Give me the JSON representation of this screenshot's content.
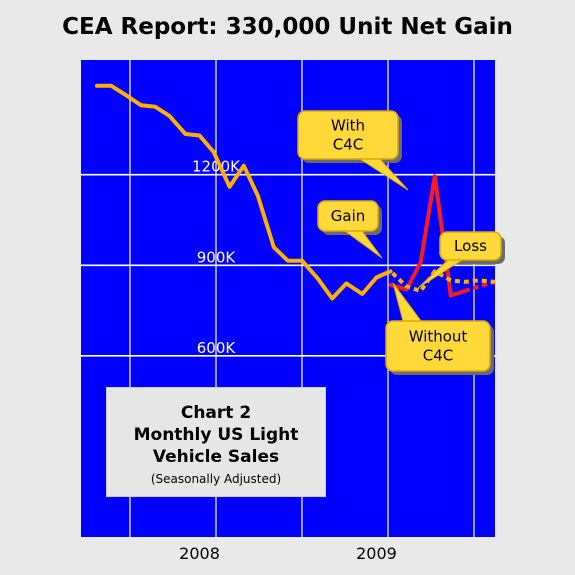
{
  "title": "CEA Report: 330,000 Unit Net Gain",
  "chart_data": {
    "type": "line",
    "title": "CEA Report: 330,000 Unit Net Gain",
    "y_ticks": [
      {
        "value": 600,
        "label": "600K"
      },
      {
        "value": 900,
        "label": "900K"
      },
      {
        "value": 1200,
        "label": "1200K"
      }
    ],
    "x_ticks": [
      {
        "value": 2008,
        "label": "2008"
      },
      {
        "value": 2009,
        "label": "2009"
      }
    ],
    "xlim": [
      2007.33,
      2009.67
    ],
    "ylim": [
      0,
      1580
    ],
    "grid": true,
    "series": [
      {
        "id": "actual",
        "color": "#ffb000",
        "style": "solid",
        "points": [
          [
            2007.42,
            1495
          ],
          [
            2007.5,
            1495
          ],
          [
            2007.58,
            1465
          ],
          [
            2007.67,
            1430
          ],
          [
            2007.75,
            1425
          ],
          [
            2007.83,
            1395
          ],
          [
            2007.92,
            1335
          ],
          [
            2008.0,
            1330
          ],
          [
            2008.08,
            1275
          ],
          [
            2008.17,
            1160
          ],
          [
            2008.25,
            1230
          ],
          [
            2008.33,
            1130
          ],
          [
            2008.42,
            960
          ],
          [
            2008.5,
            915
          ],
          [
            2008.58,
            915
          ],
          [
            2008.67,
            855
          ],
          [
            2008.75,
            790
          ],
          [
            2008.83,
            840
          ],
          [
            2008.92,
            805
          ],
          [
            2009.0,
            860
          ],
          [
            2009.08,
            880
          ]
        ]
      },
      {
        "id": "with-c4c",
        "color": "#ff1a1a",
        "style": "solid",
        "points": [
          [
            2009.08,
            835
          ],
          [
            2009.17,
            820
          ],
          [
            2009.25,
            910
          ],
          [
            2009.33,
            1195
          ],
          [
            2009.42,
            800
          ],
          [
            2009.5,
            815
          ]
        ]
      },
      {
        "id": "with-c4c-dotted",
        "color": "#ff1a1a",
        "style": "dotted",
        "points": [
          [
            2009.5,
            815
          ],
          [
            2009.58,
            830
          ],
          [
            2009.67,
            845
          ]
        ]
      },
      {
        "id": "without-c4c",
        "color": "#ffb000",
        "style": "dotted",
        "points": [
          [
            2009.0,
            860
          ],
          [
            2009.08,
            880
          ],
          [
            2009.17,
            830
          ],
          [
            2009.25,
            815
          ],
          [
            2009.33,
            880
          ],
          [
            2009.42,
            850
          ],
          [
            2009.5,
            845
          ],
          [
            2009.58,
            850
          ],
          [
            2009.67,
            845
          ]
        ]
      }
    ],
    "annotations": [
      {
        "lines": [
          "With",
          "C4C"
        ]
      },
      {
        "lines": [
          "Gain"
        ]
      },
      {
        "lines": [
          "Loss"
        ]
      },
      {
        "lines": [
          "Without",
          "C4C"
        ]
      }
    ],
    "inset_box": {
      "line1": "Chart 2",
      "line2": "Monthly US Light",
      "line3": "Vehicle Sales",
      "line4": "(Seasonally Adjusted)"
    }
  }
}
